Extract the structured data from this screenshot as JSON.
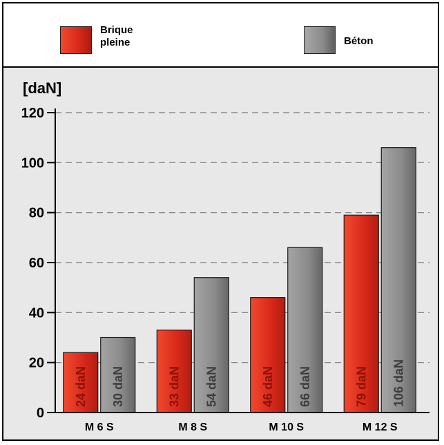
{
  "chart_data": {
    "type": "bar",
    "unit_label": "[daN]",
    "categories": [
      "M 6 S",
      "M 8 S",
      "M 10 S",
      "M 12 S"
    ],
    "series": [
      {
        "name": "Brique pleine",
        "color": "#e63020",
        "label_color": "#8a1208",
        "values": [
          24,
          33,
          46,
          79
        ],
        "labels": [
          "24 daN",
          "33 daN",
          "46 daN",
          "79 daN"
        ]
      },
      {
        "name": "Béton",
        "color": "#8e8e8e",
        "label_color": "#3c3c3c",
        "values": [
          30,
          54,
          66,
          106
        ],
        "labels": [
          "30 daN",
          "54 daN",
          "66 daN",
          "106 daN"
        ]
      }
    ],
    "ylim": [
      0,
      120
    ],
    "yticks": [
      "0",
      "20",
      "40",
      "60",
      "80",
      "100",
      "120"
    ],
    "grid": true,
    "legend_position": "top"
  },
  "legend": {
    "brique_line1": "Brique",
    "brique_line2": "pleine",
    "beton": "Béton"
  }
}
